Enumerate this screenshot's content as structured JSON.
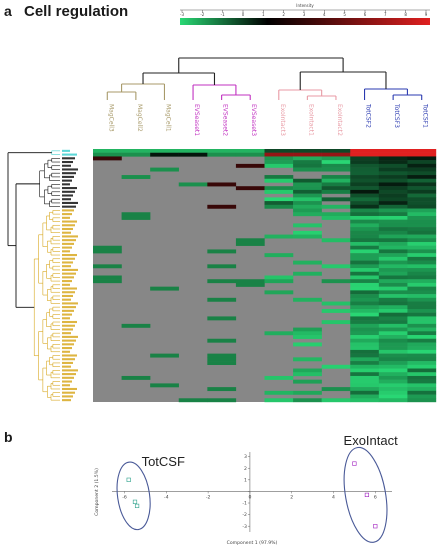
{
  "panel_a": {
    "letter": "a",
    "title": "Cell regulation",
    "colorbar": {
      "label": "Intensity",
      "ticks": [
        "-3",
        "-2",
        "-1",
        "0",
        "1",
        "2",
        "3",
        "4",
        "5",
        "6",
        "7",
        "8",
        "9"
      ],
      "colors": {
        "low": "#29d874",
        "mid": "#000000",
        "high": "#e02020"
      }
    },
    "columns": [
      {
        "label": "MagCell3",
        "group": "MagCell"
      },
      {
        "label": "MagCell2",
        "group": "MagCell"
      },
      {
        "label": "MagCell1",
        "group": "MagCell"
      },
      {
        "label": "EVSeaset1",
        "group": "EVSeaset"
      },
      {
        "label": "EVSeaset2",
        "group": "EVSeaset"
      },
      {
        "label": "EVSeaset3",
        "group": "EVSeaset"
      },
      {
        "label": "ExoIntact3",
        "group": "ExoIntact"
      },
      {
        "label": "ExoIntact1",
        "group": "ExoIntact"
      },
      {
        "label": "ExoIntact2",
        "group": "ExoIntact"
      },
      {
        "label": "TotCSF2",
        "group": "TotCSF"
      },
      {
        "label": "TotCSF3",
        "group": "TotCSF"
      },
      {
        "label": "TotCSF1",
        "group": "TotCSF"
      }
    ],
    "group_colors": {
      "MagCell": "#a89a6a",
      "EVSeaset": "#c030c0",
      "ExoIntact": "#e89aa4",
      "TotCSF": "#2a3ab0"
    },
    "row_clusters": [
      {
        "color": "#40d0d0",
        "count": 2
      },
      {
        "color": "#111111",
        "count": 14
      },
      {
        "color": "#d8a820",
        "count": 52
      }
    ],
    "missing_color": "#878787"
  },
  "panel_b": {
    "letter": "b",
    "groups": [
      {
        "label": "TotCSF",
        "points": [
          [
            -5.8,
            1.0
          ],
          [
            -5.5,
            -0.9
          ],
          [
            -5.4,
            -1.25
          ]
        ],
        "color": "#2aa08a"
      },
      {
        "label": "ExoIntact",
        "points": [
          [
            5.0,
            2.4
          ],
          [
            5.6,
            -0.3
          ],
          [
            6.0,
            -3.0
          ]
        ],
        "color": "#a020c0"
      }
    ],
    "xlabel": "Component 1 (97.9%)",
    "ylabel": "Component 2 (1.5%)",
    "xticks": [
      -6,
      -4,
      -2,
      0,
      2,
      4,
      6
    ],
    "yticks": [
      -3,
      -2,
      -1,
      0,
      1,
      2,
      3
    ],
    "xlim": [
      -6.6,
      6.8
    ],
    "ylim": [
      -3.5,
      3.4
    ],
    "ellipse_color": "#4a5a98"
  }
}
